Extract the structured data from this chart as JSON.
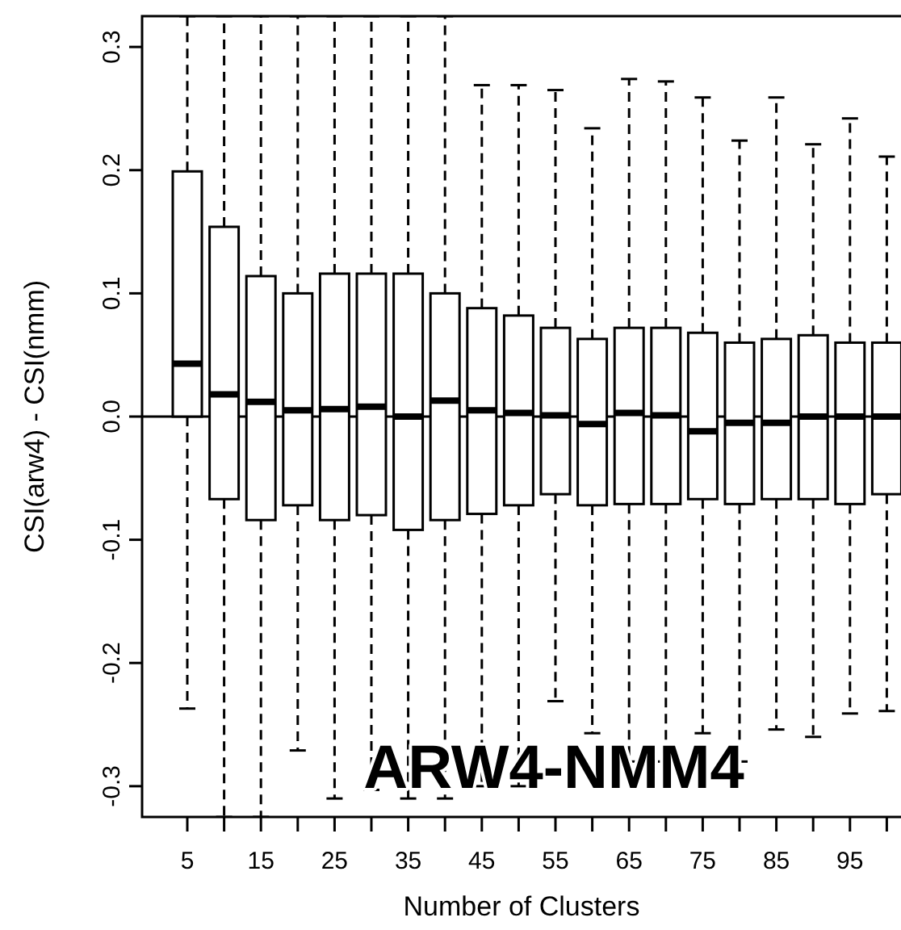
{
  "chart_data": {
    "type": "box",
    "xlabel": "Number of Clusters",
    "ylabel": "CSI(arw4) - CSI(nmm)",
    "annotations": [
      "ARW4-NMM4"
    ],
    "categories": [
      "5",
      null,
      "15",
      null,
      "25",
      null,
      "35",
      null,
      "45",
      null,
      "55",
      null,
      "65",
      null,
      "75",
      null,
      "85",
      null,
      "95",
      null
    ],
    "ylim": [
      -0.325,
      0.325
    ],
    "yticks": [
      {
        "value": -0.3,
        "label": "-0.3"
      },
      {
        "value": -0.2,
        "label": "-0.2"
      },
      {
        "value": -0.1,
        "label": "-0.1"
      },
      {
        "value": 0,
        "label": "0.0"
      },
      {
        "value": 0.1,
        "label": "0.1"
      },
      {
        "value": 0.2,
        "label": "0.2"
      },
      {
        "value": 0.3,
        "label": "0.3"
      }
    ],
    "ref_lines": [
      {
        "axis": "y",
        "value": 0
      }
    ],
    "boxes": [
      {
        "low": -0.237,
        "q1": 0.0,
        "median": 0.043,
        "q3": 0.199,
        "high": 0.325
      },
      {
        "low": -0.325,
        "q1": -0.067,
        "median": 0.018,
        "q3": 0.154,
        "high": 0.325
      },
      {
        "low": -0.325,
        "q1": -0.084,
        "median": 0.012,
        "q3": 0.114,
        "high": 0.325
      },
      {
        "low": -0.271,
        "q1": -0.072,
        "median": 0.005,
        "q3": 0.1,
        "high": 0.325
      },
      {
        "low": -0.31,
        "q1": -0.084,
        "median": 0.006,
        "q3": 0.116,
        "high": 0.325
      },
      {
        "low": -0.303,
        "q1": -0.08,
        "median": 0.008,
        "q3": 0.116,
        "high": 0.325
      },
      {
        "low": -0.31,
        "q1": -0.092,
        "median": 0.0,
        "q3": 0.116,
        "high": 0.325
      },
      {
        "low": -0.31,
        "q1": -0.084,
        "median": 0.013,
        "q3": 0.1,
        "high": 0.325
      },
      {
        "low": -0.3,
        "q1": -0.079,
        "median": 0.005,
        "q3": 0.088,
        "high": 0.269
      },
      {
        "low": -0.3,
        "q1": -0.072,
        "median": 0.003,
        "q3": 0.082,
        "high": 0.269
      },
      {
        "low": -0.231,
        "q1": -0.063,
        "median": 0.001,
        "q3": 0.072,
        "high": 0.265
      },
      {
        "low": -0.257,
        "q1": -0.072,
        "median": -0.006,
        "q3": 0.063,
        "high": 0.234
      },
      {
        "low": -0.28,
        "q1": -0.071,
        "median": 0.003,
        "q3": 0.072,
        "high": 0.274
      },
      {
        "low": -0.28,
        "q1": -0.071,
        "median": 0.001,
        "q3": 0.072,
        "high": 0.272
      },
      {
        "low": -0.257,
        "q1": -0.067,
        "median": -0.012,
        "q3": 0.068,
        "high": 0.259
      },
      {
        "low": -0.28,
        "q1": -0.071,
        "median": -0.005,
        "q3": 0.06,
        "high": 0.224
      },
      {
        "low": -0.254,
        "q1": -0.067,
        "median": -0.005,
        "q3": 0.063,
        "high": 0.259
      },
      {
        "low": -0.26,
        "q1": -0.067,
        "median": 0.0,
        "q3": 0.066,
        "high": 0.221
      },
      {
        "low": -0.241,
        "q1": -0.071,
        "median": 0.0,
        "q3": 0.06,
        "high": 0.242
      },
      {
        "low": -0.239,
        "q1": -0.063,
        "median": 0.0,
        "q3": 0.06,
        "high": 0.211
      }
    ]
  }
}
